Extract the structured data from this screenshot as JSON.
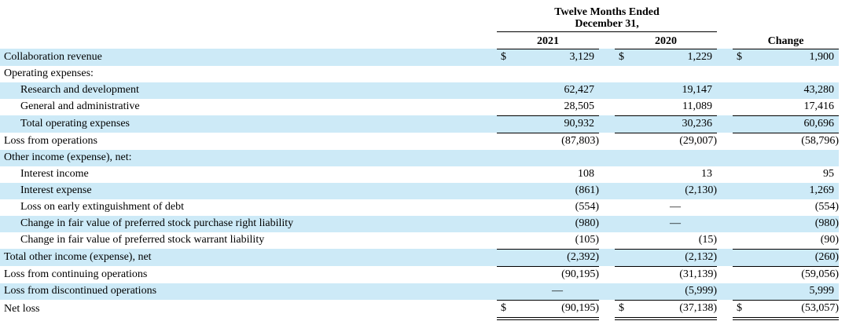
{
  "table": {
    "currency_symbol": "$",
    "empty_dash": "—",
    "header": {
      "period_line1": "Twelve Months Ended",
      "period_line2": "December 31,",
      "columns": [
        "2021",
        "2020",
        "Change"
      ]
    },
    "rows": [
      {
        "label": "Collaboration revenue",
        "indent": 0,
        "shaded": true,
        "dollar": true,
        "values": [
          "3,129",
          "1,229",
          "1,900"
        ]
      },
      {
        "label": "Operating expenses:",
        "indent": 0,
        "shaded": false,
        "dollar": false,
        "values": [
          "",
          "",
          ""
        ]
      },
      {
        "label": "Research and development",
        "indent": 1,
        "shaded": true,
        "dollar": false,
        "values": [
          "62,427",
          "19,147",
          "43,280"
        ]
      },
      {
        "label": "General and administrative",
        "indent": 1,
        "shaded": false,
        "dollar": false,
        "values": [
          "28,505",
          "11,089",
          "17,416"
        ],
        "border_bottom": "single"
      },
      {
        "label": "Total operating expenses",
        "indent": 1,
        "shaded": true,
        "dollar": false,
        "values": [
          "90,932",
          "30,236",
          "60,696"
        ],
        "border_bottom": "single"
      },
      {
        "label": "Loss from operations",
        "indent": 0,
        "shaded": false,
        "dollar": false,
        "values": [
          "(87,803)",
          "(29,007)",
          "(58,796)"
        ]
      },
      {
        "label": "Other income (expense), net:",
        "indent": 0,
        "shaded": true,
        "dollar": false,
        "values": [
          "",
          "",
          ""
        ]
      },
      {
        "label": "Interest income",
        "indent": 1,
        "shaded": false,
        "dollar": false,
        "values": [
          "108",
          "13",
          "95"
        ]
      },
      {
        "label": "Interest expense",
        "indent": 1,
        "shaded": true,
        "dollar": false,
        "values": [
          "(861)",
          "(2,130)",
          "1,269"
        ]
      },
      {
        "label": "Loss on early extinguishment of debt",
        "indent": 1,
        "shaded": false,
        "dollar": false,
        "values": [
          "(554)",
          "—",
          "(554)"
        ]
      },
      {
        "label": "Change in fair value of preferred stock purchase right liability",
        "indent": 1,
        "shaded": true,
        "dollar": false,
        "values": [
          "(980)",
          "—",
          "(980)"
        ]
      },
      {
        "label": "Change in fair value of preferred stock warrant liability",
        "indent": 1,
        "shaded": false,
        "dollar": false,
        "values": [
          "(105)",
          "(15)",
          "(90)"
        ],
        "border_bottom": "single"
      },
      {
        "label": "Total other income (expense), net",
        "indent": 0,
        "shaded": true,
        "dollar": false,
        "values": [
          "(2,392)",
          "(2,132)",
          "(260)"
        ],
        "border_bottom": "single"
      },
      {
        "label": "Loss from continuing operations",
        "indent": 0,
        "shaded": false,
        "dollar": false,
        "values": [
          "(90,195)",
          "(31,139)",
          "(59,056)"
        ]
      },
      {
        "label": "Loss from discontinued operations",
        "indent": 0,
        "shaded": true,
        "dollar": false,
        "values": [
          "—",
          "(5,999)",
          "5,999"
        ],
        "border_bottom": "single"
      },
      {
        "label": "Net loss",
        "indent": 0,
        "shaded": false,
        "dollar": true,
        "values": [
          "(90,195)",
          "(37,138)",
          "(53,057)"
        ],
        "border_bottom": "double"
      }
    ],
    "colors": {
      "row_shade": "#cdeaf7",
      "border": "#000000",
      "text": "#000000"
    }
  }
}
